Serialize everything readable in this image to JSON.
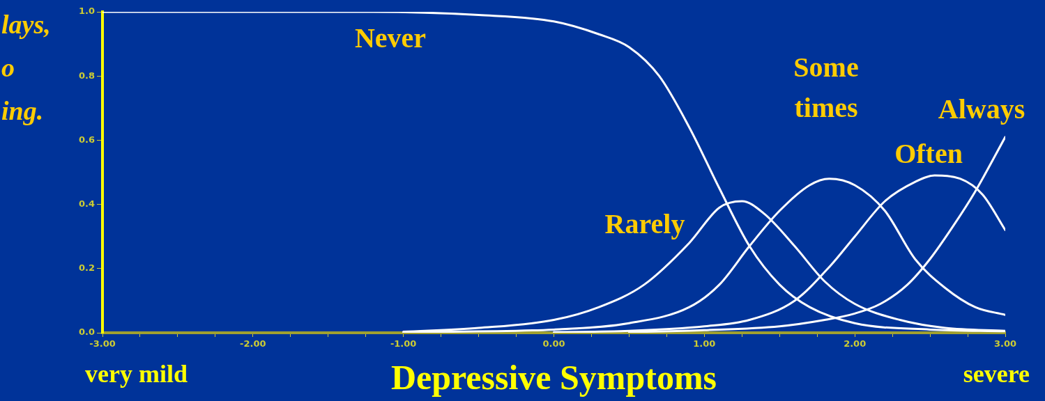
{
  "chart_data": {
    "type": "line",
    "xlabel": "Depressive Symptoms",
    "annotations": [
      "very mild",
      "severe",
      "lays,\no\ning."
    ],
    "xlim": [
      -3,
      3
    ],
    "xticks": [
      {
        "value": -3,
        "label": "-3.00"
      },
      {
        "value": -2.75,
        "label": null
      },
      {
        "value": -2.5,
        "label": null
      },
      {
        "value": -2.25,
        "label": null
      },
      {
        "value": -2,
        "label": "-2.00"
      },
      {
        "value": -1.75,
        "label": null
      },
      {
        "value": -1.5,
        "label": null
      },
      {
        "value": -1.25,
        "label": null
      },
      {
        "value": -1,
        "label": "-1.00"
      },
      {
        "value": -0.75,
        "label": null
      },
      {
        "value": -0.5,
        "label": null
      },
      {
        "value": -0.25,
        "label": null
      },
      {
        "value": 0,
        "label": "0.00"
      },
      {
        "value": 0.25,
        "label": null
      },
      {
        "value": 0.5,
        "label": null
      },
      {
        "value": 0.75,
        "label": null
      },
      {
        "value": 1,
        "label": "1.00"
      },
      {
        "value": 1.25,
        "label": null
      },
      {
        "value": 1.5,
        "label": null
      },
      {
        "value": 1.75,
        "label": null
      },
      {
        "value": 2,
        "label": "2.00"
      },
      {
        "value": 2.25,
        "label": null
      },
      {
        "value": 2.5,
        "label": null
      },
      {
        "value": 2.75,
        "label": null
      },
      {
        "value": 3,
        "label": "3.00"
      }
    ],
    "ylim": [
      0,
      1
    ],
    "yticks": [
      {
        "value": 0,
        "label": "0.0"
      },
      {
        "value": 0.2,
        "label": "0.2"
      },
      {
        "value": 0.4,
        "label": "0.4"
      },
      {
        "value": 0.6,
        "label": "0.6"
      },
      {
        "value": 0.8,
        "label": "0.8"
      },
      {
        "value": 1,
        "label": "1.0"
      }
    ],
    "grid": false,
    "legend": false,
    "marker": "none",
    "line_style": "solid",
    "series": [
      {
        "name": "Never",
        "color": "#ffffff",
        "x": [
          -3,
          -1.2,
          -0.5,
          0,
          0.3,
          0.5,
          0.7,
          0.9,
          1.1,
          1.3,
          1.5,
          1.7,
          2.0,
          2.5,
          3.0
        ],
        "values": [
          1,
          1,
          0.99,
          0.97,
          0.93,
          0.89,
          0.8,
          0.64,
          0.45,
          0.27,
          0.15,
          0.08,
          0.03,
          0.01,
          0.005
        ]
      },
      {
        "name": "Rarely",
        "color": "#ffffff",
        "x": [
          -1,
          -0.5,
          0,
          0.3,
          0.6,
          0.9,
          1.1,
          1.25,
          1.4,
          1.6,
          1.8,
          2.0,
          2.3,
          2.6,
          3.0
        ],
        "values": [
          0.003,
          0.015,
          0.04,
          0.08,
          0.15,
          0.28,
          0.39,
          0.41,
          0.37,
          0.27,
          0.16,
          0.09,
          0.04,
          0.015,
          0.006
        ]
      },
      {
        "name": "Some times",
        "color": "#ffffff",
        "x": [
          -1,
          0,
          0.5,
          0.9,
          1.1,
          1.3,
          1.5,
          1.7,
          1.83,
          2.0,
          2.2,
          2.4,
          2.6,
          2.8,
          3.0
        ],
        "values": [
          0.002,
          0.01,
          0.03,
          0.08,
          0.15,
          0.27,
          0.38,
          0.46,
          0.48,
          0.46,
          0.38,
          0.23,
          0.14,
          0.08,
          0.056
        ]
      },
      {
        "name": "Often",
        "color": "#ffffff",
        "x": [
          0,
          0.5,
          1,
          1.3,
          1.6,
          1.84,
          2.0,
          2.2,
          2.4,
          2.53,
          2.7,
          2.85,
          3.0
        ],
        "values": [
          0.002,
          0.006,
          0.02,
          0.04,
          0.1,
          0.21,
          0.3,
          0.41,
          0.47,
          0.49,
          0.48,
          0.43,
          0.32
        ]
      },
      {
        "name": "Always",
        "color": "#ffffff",
        "x": [
          0.5,
          1.0,
          1.5,
          1.8,
          2.0,
          2.17,
          2.35,
          2.5,
          2.65,
          2.8,
          3.0
        ],
        "values": [
          0.002,
          0.008,
          0.02,
          0.04,
          0.06,
          0.09,
          0.15,
          0.23,
          0.33,
          0.44,
          0.61
        ]
      }
    ]
  }
}
